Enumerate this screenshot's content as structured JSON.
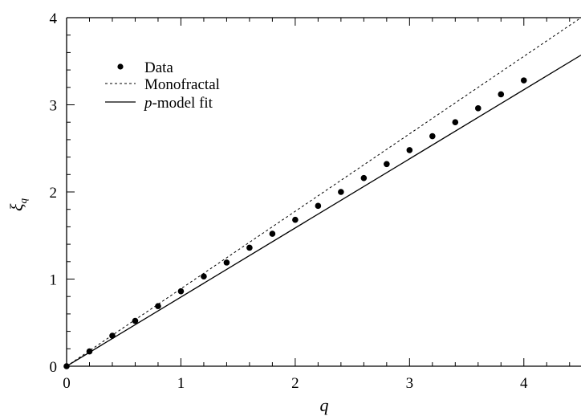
{
  "chart_data": {
    "type": "scatter",
    "title": "",
    "xlabel": "q",
    "ylabel": "ξ",
    "ylabel_subscript": "q",
    "xlim": [
      0,
      4.5
    ],
    "ylim": [
      0,
      4
    ],
    "x_ticks": [
      0,
      1,
      2,
      3,
      4
    ],
    "y_ticks": [
      0,
      1,
      2,
      3,
      4
    ],
    "x_tick_labels": [
      "0",
      "1",
      "2",
      "3",
      "4"
    ],
    "y_tick_labels": [
      "0",
      "1",
      "2",
      "3",
      "4"
    ],
    "grid": false,
    "legend_position": "top-left",
    "series": [
      {
        "name": "Data",
        "style": "points",
        "x": [
          0,
          0.2,
          0.4,
          0.6,
          0.8,
          1.0,
          1.2,
          1.4,
          1.6,
          1.8,
          2.0,
          2.2,
          2.4,
          2.6,
          2.8,
          3.0,
          3.2,
          3.4,
          3.6,
          3.8,
          4.0
        ],
        "y": [
          0,
          0.17,
          0.35,
          0.52,
          0.69,
          0.86,
          1.03,
          1.19,
          1.36,
          1.52,
          1.68,
          1.84,
          2.0,
          2.16,
          2.32,
          2.48,
          2.64,
          2.8,
          2.96,
          3.12,
          3.28
        ]
      },
      {
        "name": "Monofractal",
        "style": "dashed",
        "x": [
          0,
          4.5
        ],
        "y": [
          0,
          4.0
        ]
      },
      {
        "name_prefix": "p",
        "name": "-model fit",
        "style": "solid",
        "x": [
          0,
          4.5
        ],
        "y": [
          0,
          3.57
        ]
      }
    ]
  }
}
